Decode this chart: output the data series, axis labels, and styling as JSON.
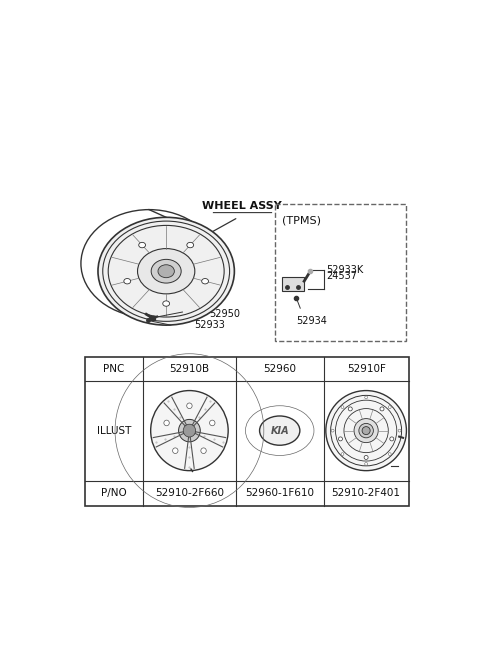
{
  "bg_color": "#ffffff",
  "wheel_assy_label": "WHEEL ASSY",
  "tpms_label": "(TPMS)",
  "part_labels_top": [
    "52950",
    "52933"
  ],
  "tpms_parts": [
    "52933K",
    "24537",
    "52934"
  ],
  "table_headers": [
    "PNC",
    "52910B",
    "52960",
    "52910F"
  ],
  "table_illust": "ILLUST",
  "table_pno_label": "P/NO",
  "table_pno": [
    "52910-2F660",
    "52960-1F610",
    "52910-2F401"
  ],
  "line_color": "#333333",
  "text_color": "#111111",
  "bg_color_table": "#ffffff"
}
